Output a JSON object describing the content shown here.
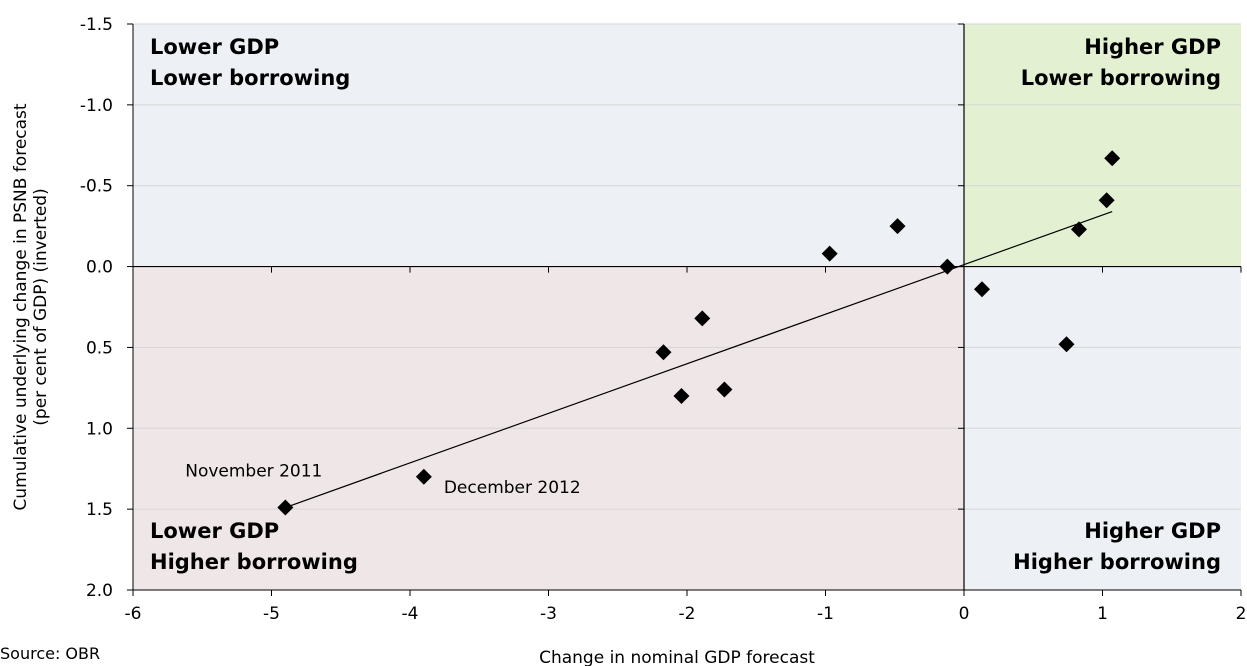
{
  "chart_data": {
    "type": "scatter",
    "title": "",
    "xlabel": "Change in nominal GDP forecast",
    "ylabel_lines": [
      "Cumulative underlying  change in PSNB forecast",
      "(per cent of GDP) (inverted)"
    ],
    "xlim": [
      -6,
      2
    ],
    "ylim": [
      -1.5,
      2.0
    ],
    "y_inverted": true,
    "grid": true,
    "x_ticks": [
      "-6",
      "-5",
      "-4",
      "-3",
      "-2",
      "-1",
      "0",
      "1",
      "2"
    ],
    "y_ticks": [
      "-1.5",
      "-1.0",
      "-0.5",
      "0.0",
      "0.5",
      "1.0",
      "1.5",
      "2.0"
    ],
    "x_tick_values": [
      -6,
      -5,
      -4,
      -3,
      -2,
      -1,
      0,
      1,
      2
    ],
    "y_tick_values": [
      -1.5,
      -1.0,
      -0.5,
      0.0,
      0.5,
      1.0,
      1.5,
      2.0
    ],
    "points": [
      {
        "x": -4.9,
        "y": 1.49
      },
      {
        "x": -3.9,
        "y": 1.3
      },
      {
        "x": -2.17,
        "y": 0.53
      },
      {
        "x": -2.04,
        "y": 0.8
      },
      {
        "x": -1.89,
        "y": 0.32
      },
      {
        "x": -1.73,
        "y": 0.76
      },
      {
        "x": -0.97,
        "y": -0.08
      },
      {
        "x": -0.48,
        "y": -0.25
      },
      {
        "x": -0.12,
        "y": 0.0
      },
      {
        "x": 0.13,
        "y": 0.14
      },
      {
        "x": 0.74,
        "y": 0.48
      },
      {
        "x": 0.83,
        "y": -0.23
      },
      {
        "x": 1.03,
        "y": -0.41
      },
      {
        "x": 1.07,
        "y": -0.67
      }
    ],
    "trendline": {
      "x": [
        -4.9,
        1.07
      ],
      "y": [
        1.49,
        -0.34
      ]
    },
    "quadrants": [
      {
        "lines": [
          "Lower GDP",
          "Lower borrowing"
        ],
        "color": "#edf0f4"
      },
      {
        "lines": [
          "Higher GDP",
          "Lower borrowing"
        ],
        "color": "#e3f1d2"
      },
      {
        "lines": [
          "Lower GDP",
          "Higher borrowing"
        ],
        "color": "#efe6e8"
      },
      {
        "lines": [
          "Higher GDP",
          "Higher borrowing"
        ],
        "color": "#edf0f4"
      }
    ],
    "annotations": [
      {
        "text": "November 2011",
        "x": -4.9,
        "y": 1.49
      },
      {
        "text": "December 2012",
        "x": -3.9,
        "y": 1.3
      }
    ]
  },
  "source_note": "Source: OBR"
}
